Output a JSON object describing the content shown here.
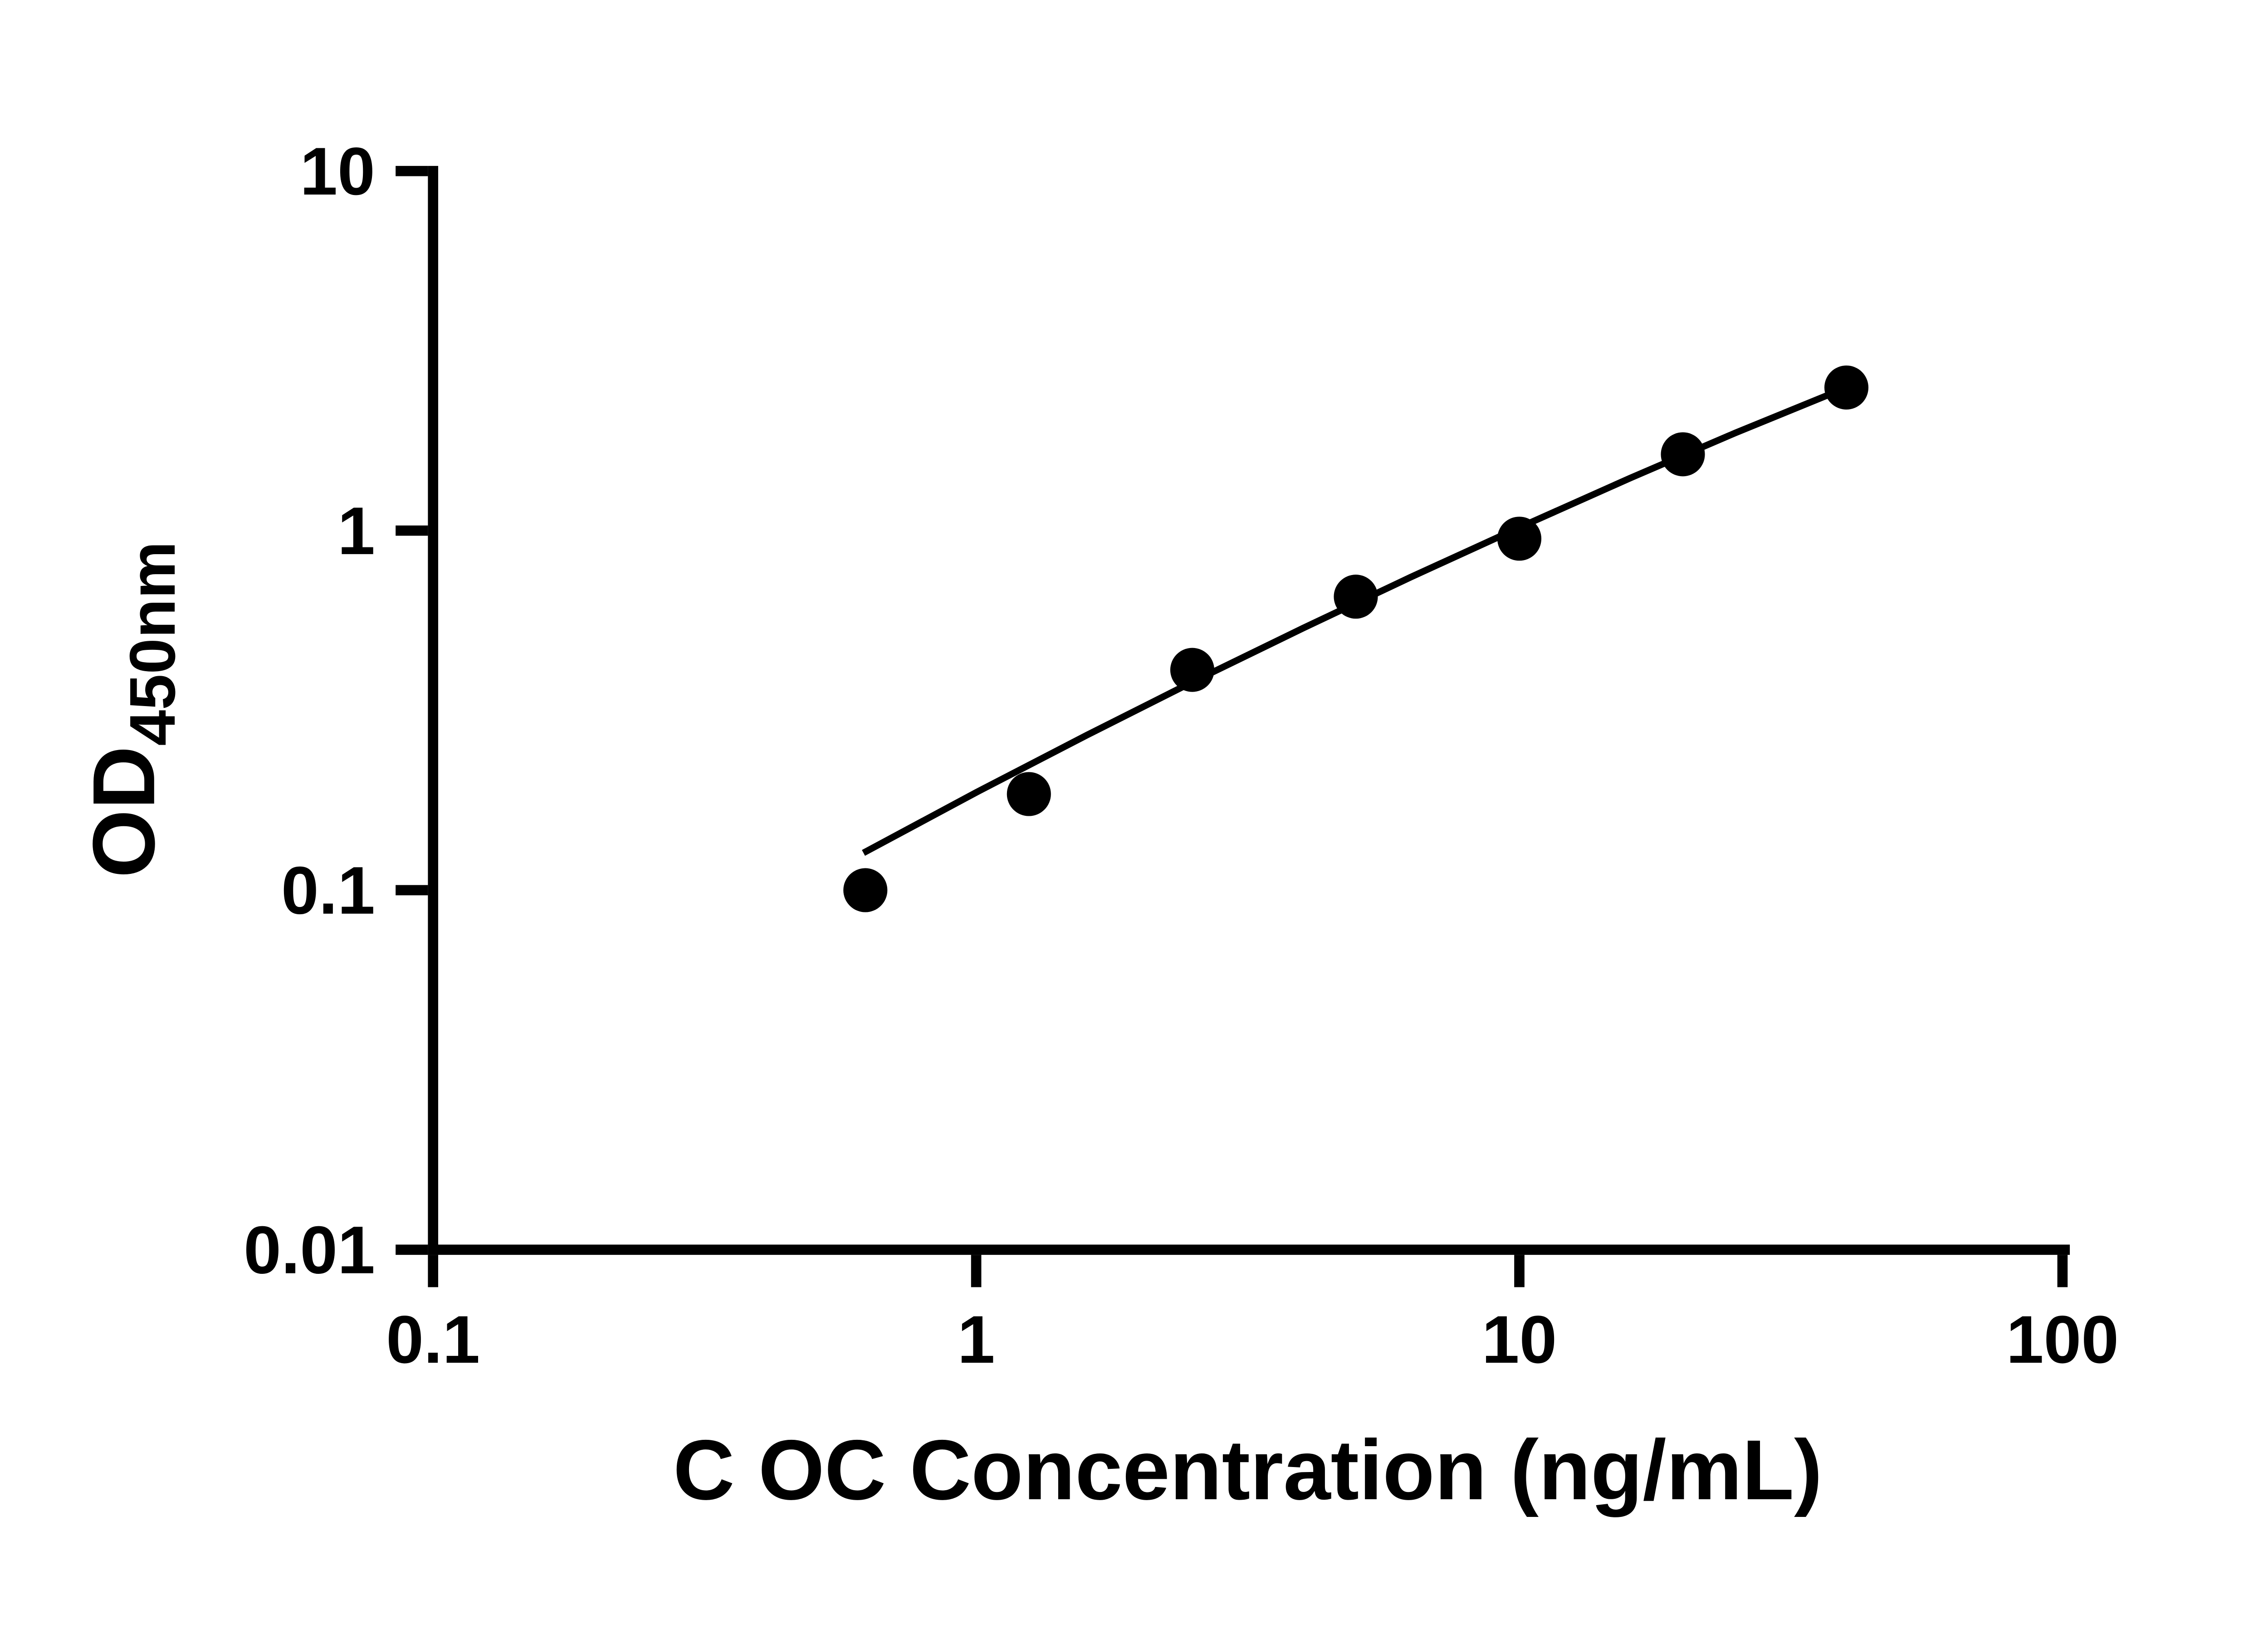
{
  "figure": {
    "background": "#ffffff",
    "axis_color": "#000000",
    "text_color": "#000000"
  },
  "chart_data": {
    "type": "scatter",
    "title": "",
    "xlabel": "C OC Concentration (ng/mL)",
    "ylabel_main": "OD",
    "ylabel_sub": "450nm",
    "x_scale": "log",
    "y_scale": "log",
    "xlim": [
      0.1,
      100
    ],
    "ylim": [
      0.01,
      10
    ],
    "grid": false,
    "legend_position": "none",
    "marker_color": "#000000",
    "line_color": "#000000",
    "x_ticks": [
      {
        "value": 0.1,
        "label": "0.1"
      },
      {
        "value": 1,
        "label": "1"
      },
      {
        "value": 10,
        "label": "10"
      },
      {
        "value": 100,
        "label": "100"
      }
    ],
    "y_ticks": [
      {
        "value": 0.01,
        "label": "0.01"
      },
      {
        "value": 0.1,
        "label": "0.1"
      },
      {
        "value": 1,
        "label": "1"
      },
      {
        "value": 10,
        "label": "10"
      }
    ],
    "points": [
      {
        "x": 0.625,
        "y": 0.1
      },
      {
        "x": 1.25,
        "y": 0.185
      },
      {
        "x": 2.5,
        "y": 0.41
      },
      {
        "x": 5,
        "y": 0.655
      },
      {
        "x": 10,
        "y": 0.95
      },
      {
        "x": 20,
        "y": 1.63
      },
      {
        "x": 40,
        "y": 2.5
      }
    ],
    "fit_line": [
      {
        "x": 0.62,
        "y": 0.127
      },
      {
        "x": 1.0,
        "y": 0.187
      },
      {
        "x": 1.6,
        "y": 0.27
      },
      {
        "x": 2.5,
        "y": 0.379
      },
      {
        "x": 4.0,
        "y": 0.536
      },
      {
        "x": 6.3,
        "y": 0.742
      },
      {
        "x": 10,
        "y": 1.02
      },
      {
        "x": 16,
        "y": 1.4
      },
      {
        "x": 25,
        "y": 1.87
      },
      {
        "x": 40,
        "y": 2.5
      }
    ]
  }
}
